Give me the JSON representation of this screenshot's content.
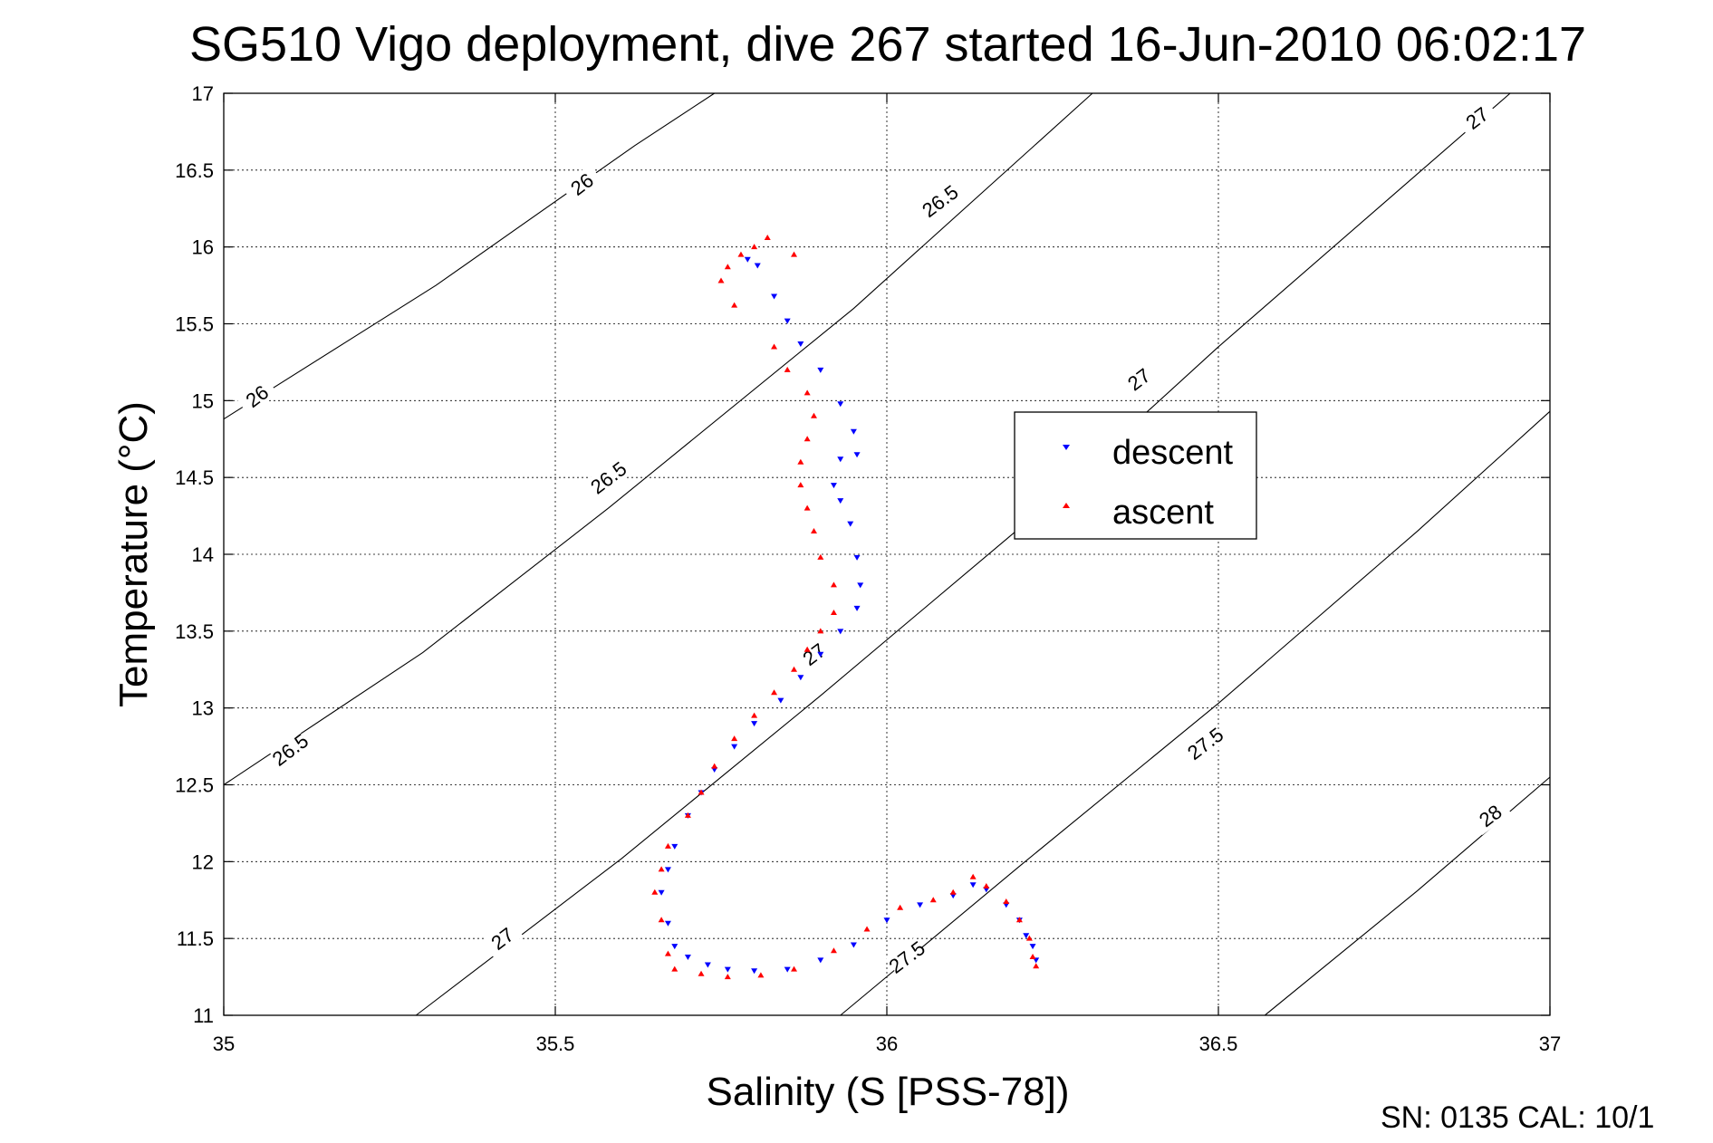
{
  "chart_data": {
    "type": "scatter",
    "title": "SG510 Vigo deployment, dive 267 started 16-Jun-2010 06:02:17",
    "xlabel": "Salinity (S [PSS-78])",
    "ylabel": "Temperature (°C)",
    "xlim": [
      35,
      37
    ],
    "ylim": [
      11,
      17
    ],
    "x_ticks": [
      "35",
      "35.5",
      "36",
      "36.5",
      "37"
    ],
    "y_ticks": [
      "11",
      "11.5",
      "12",
      "12.5",
      "13",
      "13.5",
      "14",
      "14.5",
      "15",
      "15.5",
      "16",
      "16.5",
      "17"
    ],
    "grid": true,
    "legend_position": "right-middle",
    "footer": "SN: 0135  CAL: 10/1",
    "density_contours": {
      "color": "#000000",
      "lines": [
        {
          "level": "26",
          "points": [
            [
              35.0,
              14.88
            ],
            [
              35.32,
              15.75
            ],
            [
              35.62,
              16.66
            ],
            [
              35.74,
              17.0
            ]
          ],
          "labels": [
            [
              35.54,
              16.41
            ],
            [
              35.05,
              15.03
            ]
          ]
        },
        {
          "level": "26.5",
          "points": [
            [
              35.0,
              12.5
            ],
            [
              35.3,
              13.36
            ],
            [
              35.58,
              14.3
            ],
            [
              35.95,
              15.6
            ],
            [
              36.31,
              17.0
            ]
          ],
          "labels": [
            [
              36.08,
              16.3
            ],
            [
              35.58,
              14.5
            ],
            [
              35.1,
              12.73
            ]
          ]
        },
        {
          "level": "27",
          "points": [
            [
              35.29,
              11.0
            ],
            [
              35.6,
              12.02
            ],
            [
              35.9,
              13.08
            ],
            [
              36.2,
              14.17
            ],
            [
              36.5,
              15.35
            ],
            [
              36.94,
              17.0
            ]
          ],
          "labels": [
            [
              36.89,
              16.84
            ],
            [
              36.38,
              15.14
            ],
            [
              35.89,
              13.35
            ],
            [
              35.42,
              11.5
            ]
          ]
        },
        {
          "level": "27.5",
          "points": [
            [
              35.93,
              11.0
            ],
            [
              36.2,
              11.97
            ],
            [
              36.5,
              13.03
            ],
            [
              36.8,
              14.15
            ],
            [
              37.0,
              14.93
            ]
          ],
          "labels": [
            [
              36.48,
              12.77
            ],
            [
              36.03,
              11.38
            ]
          ]
        },
        {
          "level": "28",
          "points": [
            [
              36.57,
              11.0
            ],
            [
              36.8,
              11.81
            ],
            [
              37.0,
              12.55
            ]
          ],
          "labels": [
            [
              36.91,
              12.3
            ]
          ]
        }
      ]
    },
    "series": [
      {
        "name": "descent",
        "color": "#0000ff",
        "marker": "triangle-down",
        "points": [
          [
            35.79,
            15.92
          ],
          [
            35.805,
            15.88
          ],
          [
            35.83,
            15.68
          ],
          [
            35.85,
            15.52
          ],
          [
            35.87,
            15.37
          ],
          [
            35.9,
            15.2
          ],
          [
            35.93,
            14.98
          ],
          [
            35.95,
            14.8
          ],
          [
            35.93,
            14.62
          ],
          [
            35.955,
            14.65
          ],
          [
            35.92,
            14.45
          ],
          [
            35.93,
            14.35
          ],
          [
            35.945,
            14.2
          ],
          [
            35.955,
            13.98
          ],
          [
            35.96,
            13.8
          ],
          [
            35.955,
            13.65
          ],
          [
            35.93,
            13.5
          ],
          [
            35.9,
            13.35
          ],
          [
            35.87,
            13.2
          ],
          [
            35.84,
            13.05
          ],
          [
            35.8,
            12.9
          ],
          [
            35.77,
            12.75
          ],
          [
            35.74,
            12.6
          ],
          [
            35.72,
            12.45
          ],
          [
            35.7,
            12.3
          ],
          [
            35.68,
            12.1
          ],
          [
            35.67,
            11.95
          ],
          [
            35.66,
            11.8
          ],
          [
            35.67,
            11.6
          ],
          [
            35.68,
            11.45
          ],
          [
            35.7,
            11.38
          ],
          [
            35.73,
            11.33
          ],
          [
            35.76,
            11.3
          ],
          [
            35.8,
            11.29
          ],
          [
            35.85,
            11.3
          ],
          [
            35.9,
            11.36
          ],
          [
            35.95,
            11.46
          ],
          [
            36.0,
            11.62
          ],
          [
            36.05,
            11.72
          ],
          [
            36.1,
            11.78
          ],
          [
            36.13,
            11.85
          ],
          [
            36.15,
            11.82
          ],
          [
            36.18,
            11.72
          ],
          [
            36.2,
            11.62
          ],
          [
            36.21,
            11.52
          ],
          [
            36.22,
            11.45
          ],
          [
            36.225,
            11.36
          ]
        ]
      },
      {
        "name": "ascent",
        "color": "#ff0000",
        "marker": "triangle-up",
        "points": [
          [
            35.82,
            16.06
          ],
          [
            35.8,
            16.0
          ],
          [
            35.78,
            15.95
          ],
          [
            35.76,
            15.87
          ],
          [
            35.75,
            15.78
          ],
          [
            35.77,
            15.62
          ],
          [
            35.86,
            15.95
          ],
          [
            35.83,
            15.35
          ],
          [
            35.85,
            15.2
          ],
          [
            35.88,
            15.05
          ],
          [
            35.89,
            14.9
          ],
          [
            35.88,
            14.75
          ],
          [
            35.87,
            14.6
          ],
          [
            35.87,
            14.45
          ],
          [
            35.88,
            14.3
          ],
          [
            35.89,
            14.15
          ],
          [
            35.9,
            13.98
          ],
          [
            35.92,
            13.8
          ],
          [
            35.92,
            13.62
          ],
          [
            35.9,
            13.5
          ],
          [
            35.88,
            13.38
          ],
          [
            35.86,
            13.25
          ],
          [
            35.83,
            13.1
          ],
          [
            35.8,
            12.95
          ],
          [
            35.77,
            12.8
          ],
          [
            35.74,
            12.62
          ],
          [
            35.72,
            12.45
          ],
          [
            35.7,
            12.3
          ],
          [
            35.67,
            12.1
          ],
          [
            35.66,
            11.95
          ],
          [
            35.65,
            11.8
          ],
          [
            35.66,
            11.62
          ],
          [
            35.67,
            11.4
          ],
          [
            35.68,
            11.3
          ],
          [
            35.72,
            11.27
          ],
          [
            35.76,
            11.25
          ],
          [
            35.81,
            11.26
          ],
          [
            35.86,
            11.3
          ],
          [
            35.92,
            11.42
          ],
          [
            35.97,
            11.56
          ],
          [
            36.02,
            11.7
          ],
          [
            36.07,
            11.75
          ],
          [
            36.1,
            11.8
          ],
          [
            36.13,
            11.9
          ],
          [
            36.15,
            11.84
          ],
          [
            36.18,
            11.74
          ],
          [
            36.2,
            11.62
          ],
          [
            36.215,
            11.5
          ],
          [
            36.22,
            11.38
          ],
          [
            36.225,
            11.32
          ]
        ]
      }
    ]
  }
}
